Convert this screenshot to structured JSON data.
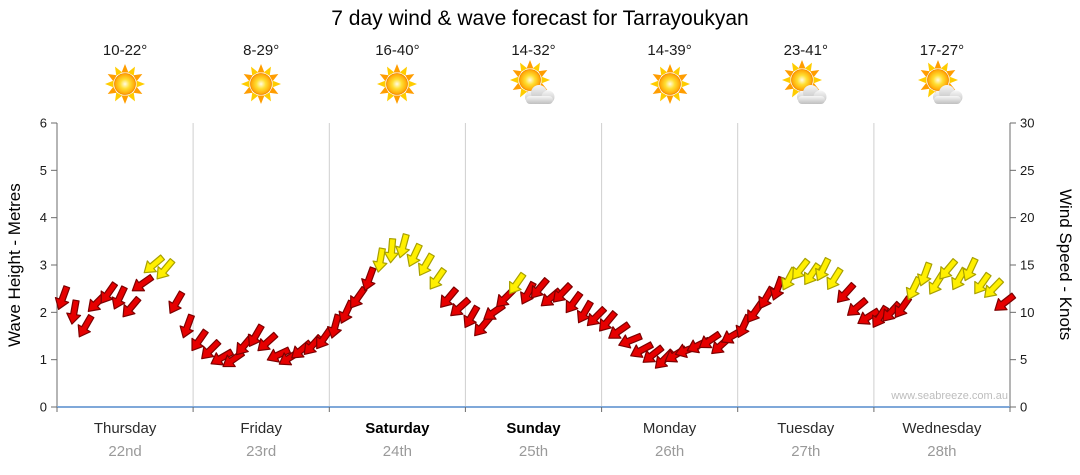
{
  "title": "7 day wind & wave forecast for Tarrayoukyan",
  "watermark": "www.seabreeze.com.au",
  "forecast": {
    "days": [
      {
        "name": "Thursday",
        "date": "22nd",
        "temp": "10-22°",
        "icon": "sun",
        "bold": false
      },
      {
        "name": "Friday",
        "date": "23rd",
        "temp": "8-29°",
        "icon": "sun",
        "bold": false
      },
      {
        "name": "Saturday",
        "date": "24th",
        "temp": "16-40°",
        "icon": "sun",
        "bold": true
      },
      {
        "name": "Sunday",
        "date": "25th",
        "temp": "14-32°",
        "icon": "sun-cloud",
        "bold": true
      },
      {
        "name": "Monday",
        "date": "26th",
        "temp": "14-39°",
        "icon": "sun",
        "bold": false
      },
      {
        "name": "Tuesday",
        "date": "27th",
        "temp": "23-41°",
        "icon": "sun-cloud",
        "bold": false
      },
      {
        "name": "Wednesday",
        "date": "28th",
        "temp": "17-27°",
        "icon": "sun-cloud",
        "bold": false
      }
    ]
  },
  "chart_data": {
    "type": "scatter",
    "title": "7 day wind & wave forecast for Tarrayoukyan",
    "x_categories": [
      "Thursday 22nd",
      "Friday 23rd",
      "Saturday 24th",
      "Sunday 25th",
      "Monday 26th",
      "Tuesday 27th",
      "Wednesday 28th"
    ],
    "y_left": {
      "label": "Wave Height - Metres",
      "range": [
        0,
        6
      ],
      "ticks": [
        0,
        1,
        2,
        3,
        4,
        5,
        6
      ]
    },
    "y_right": {
      "label": "Wind Speed - Knots",
      "range": [
        0,
        30
      ],
      "ticks": [
        0,
        5,
        10,
        15,
        20,
        25,
        30
      ]
    },
    "grid": "vertical-day-separators",
    "legend": "none",
    "palette": {
      "r": {
        "fill": "#e60000",
        "stroke": "#7d0000"
      },
      "y": {
        "fill": "#ffef00",
        "stroke": "#a8a000"
      }
    },
    "series": [
      {
        "name": "Wind speed and direction",
        "marker": "direction-arrow",
        "point_format": [
          "time_days",
          "knots",
          "direction_deg",
          "color_key"
        ],
        "points": [
          [
            0.042,
            11.5,
            200,
            "r"
          ],
          [
            0.125,
            10,
            190,
            "r"
          ],
          [
            0.208,
            8.5,
            210,
            "r"
          ],
          [
            0.292,
            11,
            225,
            "r"
          ],
          [
            0.375,
            12,
            215,
            "r"
          ],
          [
            0.458,
            11.5,
            205,
            "r"
          ],
          [
            0.542,
            10.5,
            220,
            "r"
          ],
          [
            0.625,
            13,
            235,
            "r"
          ],
          [
            0.708,
            15,
            230,
            "y"
          ],
          [
            0.792,
            14.5,
            220,
            "y"
          ],
          [
            0.875,
            11,
            210,
            "r"
          ],
          [
            0.958,
            8.5,
            200,
            "r"
          ],
          [
            1.042,
            7,
            215,
            "r"
          ],
          [
            1.125,
            6,
            225,
            "r"
          ],
          [
            1.208,
            5.2,
            240,
            "r"
          ],
          [
            1.292,
            5,
            235,
            "r"
          ],
          [
            1.375,
            6.5,
            220,
            "r"
          ],
          [
            1.458,
            7.5,
            210,
            "r"
          ],
          [
            1.542,
            6.8,
            228,
            "r"
          ],
          [
            1.625,
            5.5,
            245,
            "r"
          ],
          [
            1.708,
            5.2,
            238,
            "r"
          ],
          [
            1.792,
            6,
            230,
            "r"
          ],
          [
            1.875,
            6.5,
            222,
            "r"
          ],
          [
            1.958,
            7.2,
            215,
            "r"
          ],
          [
            2.042,
            8.5,
            195,
            "r"
          ],
          [
            2.125,
            10,
            205,
            "r"
          ],
          [
            2.208,
            11.5,
            215,
            "r"
          ],
          [
            2.292,
            13.5,
            200,
            "r"
          ],
          [
            2.375,
            15.5,
            190,
            "y"
          ],
          [
            2.458,
            16.5,
            185,
            "y"
          ],
          [
            2.542,
            17,
            195,
            "y"
          ],
          [
            2.625,
            16,
            205,
            "y"
          ],
          [
            2.708,
            15,
            210,
            "y"
          ],
          [
            2.792,
            13.5,
            215,
            "y"
          ],
          [
            2.875,
            11.5,
            220,
            "r"
          ],
          [
            2.958,
            10.5,
            228,
            "r"
          ],
          [
            3.042,
            9.5,
            210,
            "r"
          ],
          [
            3.125,
            8.5,
            220,
            "r"
          ],
          [
            3.208,
            10,
            235,
            "r"
          ],
          [
            3.292,
            11.5,
            225,
            "r"
          ],
          [
            3.375,
            13,
            215,
            "y"
          ],
          [
            3.458,
            12,
            208,
            "r"
          ],
          [
            3.542,
            12.5,
            220,
            "r"
          ],
          [
            3.625,
            11.5,
            230,
            "r"
          ],
          [
            3.708,
            12,
            224,
            "r"
          ],
          [
            3.792,
            11,
            216,
            "r"
          ],
          [
            3.875,
            10,
            210,
            "r"
          ],
          [
            3.958,
            9.5,
            225,
            "r"
          ],
          [
            4.042,
            9,
            220,
            "r"
          ],
          [
            4.125,
            8,
            235,
            "r"
          ],
          [
            4.208,
            7,
            248,
            "r"
          ],
          [
            4.292,
            6,
            242,
            "r"
          ],
          [
            4.375,
            5.5,
            232,
            "r"
          ],
          [
            4.458,
            5,
            225,
            "r"
          ],
          [
            4.542,
            5.5,
            238,
            "r"
          ],
          [
            4.625,
            6,
            250,
            "r"
          ],
          [
            4.708,
            6.5,
            244,
            "r"
          ],
          [
            4.792,
            7,
            236,
            "r"
          ],
          [
            4.875,
            6.5,
            228,
            "r"
          ],
          [
            4.958,
            7.5,
            240,
            "r"
          ],
          [
            5.042,
            8.5,
            205,
            "r"
          ],
          [
            5.125,
            10,
            215,
            "r"
          ],
          [
            5.208,
            11.5,
            210,
            "r"
          ],
          [
            5.292,
            12.5,
            200,
            "r"
          ],
          [
            5.375,
            13.5,
            208,
            "y"
          ],
          [
            5.458,
            14.5,
            218,
            "y"
          ],
          [
            5.542,
            14,
            214,
            "y"
          ],
          [
            5.625,
            14.5,
            206,
            "y"
          ],
          [
            5.708,
            13.5,
            212,
            "y"
          ],
          [
            5.792,
            12,
            222,
            "r"
          ],
          [
            5.875,
            10.5,
            230,
            "r"
          ],
          [
            5.958,
            9.5,
            238,
            "r"
          ],
          [
            6.042,
            9.5,
            212,
            "r"
          ],
          [
            6.125,
            10,
            222,
            "r"
          ],
          [
            6.208,
            10.5,
            215,
            "r"
          ],
          [
            6.292,
            12.5,
            206,
            "y"
          ],
          [
            6.375,
            14,
            200,
            "y"
          ],
          [
            6.458,
            13,
            212,
            "y"
          ],
          [
            6.542,
            14.5,
            220,
            "y"
          ],
          [
            6.625,
            13.5,
            210,
            "y"
          ],
          [
            6.708,
            14.5,
            205,
            "y"
          ],
          [
            6.792,
            13,
            215,
            "y"
          ],
          [
            6.875,
            12.5,
            224,
            "y"
          ],
          [
            6.958,
            11,
            232,
            "r"
          ]
        ]
      }
    ]
  }
}
